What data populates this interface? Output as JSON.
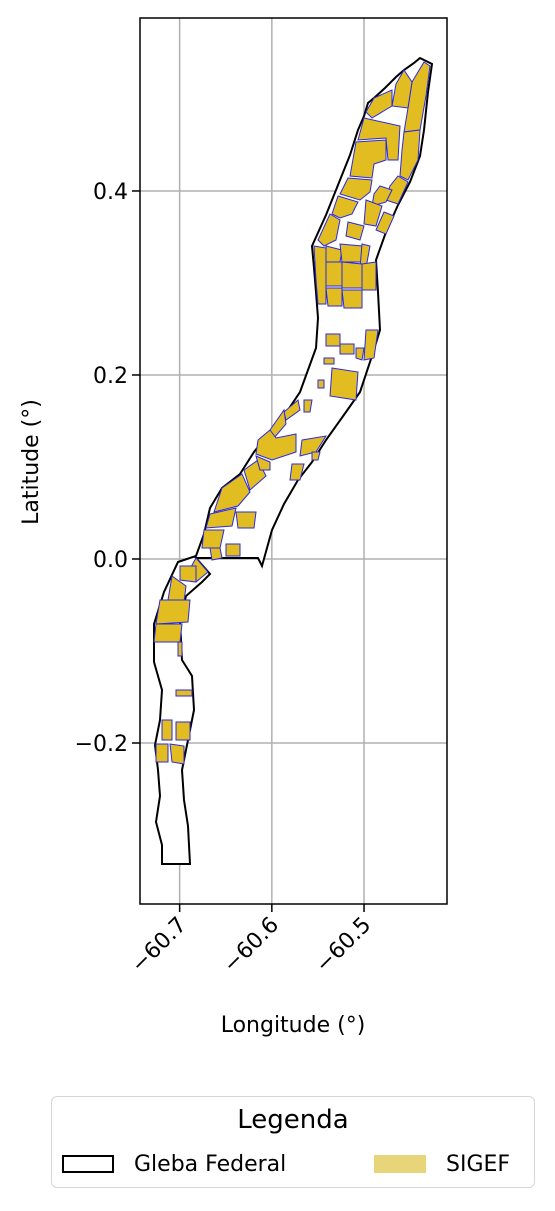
{
  "chart_data": {
    "type": "map",
    "xlabel": "Longitude (°)",
    "ylabel": "Latitude (°)",
    "xlim": [
      -60.743,
      -60.41
    ],
    "ylim": [
      -0.375,
      0.588
    ],
    "xticks": [
      -60.7,
      -60.6,
      -60.5
    ],
    "xtick_labels": [
      "−60.7",
      "−60.6",
      "−60.5"
    ],
    "yticks": [
      -0.2,
      0.0,
      0.2,
      0.4
    ],
    "ytick_labels": [
      "−0.2",
      "0.0",
      "0.2",
      "0.4"
    ],
    "grid": true,
    "series": [
      {
        "name": "Gleba Federal",
        "style": "outline",
        "color": "#000000"
      },
      {
        "name": "SIGEF",
        "style": "fill",
        "color": "#e2bd22",
        "edge_color": "#2a2ae0"
      }
    ]
  },
  "legend": {
    "title": "Legenda",
    "placement": "bottom-center",
    "items": [
      {
        "label": "Gleba Federal"
      },
      {
        "label": "SIGEF"
      }
    ]
  }
}
